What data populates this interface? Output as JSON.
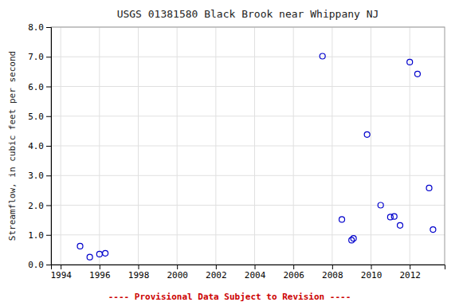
{
  "chart_data": {
    "type": "scatter",
    "title": "USGS 01381580 Black Brook near Whippany NJ",
    "ylabel": "Streamflow, in cubic feet per second",
    "annotations": [
      "---- Provisional Data Subject to Revision ----"
    ],
    "x": [
      1995.0,
      1995.5,
      1996.0,
      1996.3,
      2007.5,
      2008.5,
      2009.0,
      2009.1,
      2009.8,
      2010.5,
      2011.0,
      2011.2,
      2011.5,
      2012.0,
      2012.4,
      2013.0,
      2013.2
    ],
    "values": [
      0.62,
      0.25,
      0.35,
      0.38,
      7.02,
      1.52,
      0.82,
      0.88,
      4.38,
      2.0,
      1.6,
      1.62,
      1.32,
      6.82,
      6.42,
      2.58,
      1.18
    ],
    "color": "#0000CC",
    "marker": "circle",
    "xlim": [
      1993.5,
      2013.8
    ],
    "ylim": [
      0.0,
      8.0
    ],
    "xticks": [
      1994,
      1996,
      1998,
      2000,
      2002,
      2004,
      2006,
      2008,
      2010,
      2012
    ],
    "yticks": [
      {
        "value": 0.0,
        "label": "0.0"
      },
      {
        "value": 1.0,
        "label": "1.0"
      },
      {
        "value": 2.0,
        "label": "2.0"
      },
      {
        "value": 3.0,
        "label": "3.0"
      },
      {
        "value": 4.0,
        "label": "4.0"
      },
      {
        "value": 5.0,
        "label": "5.0"
      },
      {
        "value": 6.0,
        "label": "6.0"
      },
      {
        "value": 7.0,
        "label": "7.0"
      },
      {
        "value": 8.0,
        "label": "8.0"
      }
    ],
    "grid": true
  }
}
